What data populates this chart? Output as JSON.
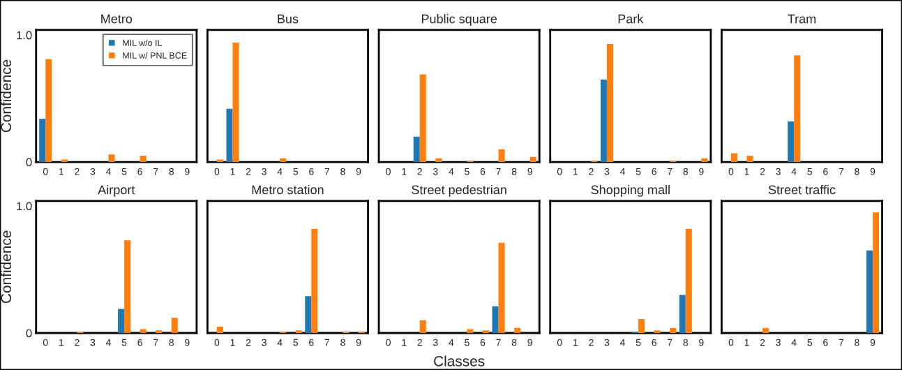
{
  "chart_data": [
    {
      "type": "bar",
      "title": "Metro",
      "ylabel": "Confidence",
      "categories": [
        "0",
        "1",
        "2",
        "3",
        "4",
        "5",
        "6",
        "7",
        "8",
        "9"
      ],
      "ylim": [
        0,
        1.04
      ],
      "yticks": [
        0,
        {
          "value": 1.0,
          "label": "1.0"
        }
      ],
      "grid": false,
      "legend": "top right",
      "series": [
        {
          "name": "MIL w/o IL",
          "color": "#1f77b4",
          "values": [
            0.34,
            0,
            0,
            0,
            0,
            0,
            0,
            0,
            0,
            0
          ]
        },
        {
          "name": "MIL w/ PNL BCE",
          "color": "#ff7f0e",
          "values": [
            0.81,
            0.02,
            0,
            0,
            0.06,
            0,
            0.05,
            0,
            0,
            0
          ]
        }
      ]
    },
    {
      "type": "bar",
      "title": "Bus",
      "categories": [
        "0",
        "1",
        "2",
        "3",
        "4",
        "5",
        "6",
        "7",
        "8",
        "9"
      ],
      "ylim": [
        0,
        1.04
      ],
      "grid": false,
      "tick_labels": "x",
      "series": [
        {
          "color": "#1f77b4",
          "values": [
            0,
            0.42,
            0,
            0,
            0,
            0,
            0,
            0,
            0,
            0
          ]
        },
        {
          "color": "#ff7f0e",
          "values": [
            0.02,
            0.94,
            0,
            0,
            0.03,
            0,
            0,
            0,
            0,
            0
          ]
        }
      ]
    },
    {
      "type": "bar",
      "title": "Public square",
      "categories": [
        "0",
        "1",
        "2",
        "3",
        "4",
        "5",
        "6",
        "7",
        "8",
        "9"
      ],
      "ylim": [
        0,
        1.04
      ],
      "grid": false,
      "tick_labels": "x",
      "series": [
        {
          "color": "#1f77b4",
          "values": [
            0,
            0,
            0.2,
            0,
            0,
            0,
            0,
            0,
            0,
            0
          ]
        },
        {
          "color": "#ff7f0e",
          "values": [
            0,
            0,
            0.69,
            0.03,
            0,
            0.01,
            0,
            0.1,
            0,
            0.04
          ]
        }
      ]
    },
    {
      "type": "bar",
      "title": "Park",
      "categories": [
        "0",
        "1",
        "2",
        "3",
        "4",
        "5",
        "6",
        "7",
        "8",
        "9"
      ],
      "ylim": [
        0,
        1.04
      ],
      "grid": false,
      "tick_labels": "x",
      "series": [
        {
          "color": "#1f77b4",
          "values": [
            0,
            0,
            0,
            0.65,
            0,
            0,
            0,
            0,
            0,
            0
          ]
        },
        {
          "color": "#ff7f0e",
          "values": [
            0,
            0,
            0.01,
            0.93,
            0,
            0,
            0,
            0.01,
            0,
            0.03
          ]
        }
      ]
    },
    {
      "type": "bar",
      "title": "Tram",
      "categories": [
        "0",
        "1",
        "2",
        "3",
        "4",
        "5",
        "6",
        "7",
        "8",
        "9"
      ],
      "ylim": [
        0,
        1.04
      ],
      "grid": false,
      "tick_labels": "x",
      "series": [
        {
          "color": "#1f77b4",
          "values": [
            0,
            0,
            0,
            0,
            0.32,
            0,
            0,
            0,
            0,
            0
          ]
        },
        {
          "color": "#ff7f0e",
          "values": [
            0.07,
            0.05,
            0,
            0,
            0.84,
            0,
            0,
            0,
            0,
            0
          ]
        }
      ]
    },
    {
      "type": "bar",
      "title": "Airport",
      "ylabel": "Confidence",
      "categories": [
        "0",
        "1",
        "2",
        "3",
        "4",
        "5",
        "6",
        "7",
        "8",
        "9"
      ],
      "ylim": [
        0,
        1.04
      ],
      "yticks": [
        0,
        {
          "value": 1.0,
          "label": "1.0"
        }
      ],
      "grid": false,
      "series": [
        {
          "color": "#1f77b4",
          "values": [
            0,
            0,
            0,
            0,
            0,
            0.19,
            0,
            0,
            0,
            0
          ]
        },
        {
          "color": "#ff7f0e",
          "values": [
            0,
            0,
            0.01,
            0,
            0,
            0.73,
            0.03,
            0.02,
            0.12,
            0
          ]
        }
      ]
    },
    {
      "type": "bar",
      "title": "Metro station",
      "categories": [
        "0",
        "1",
        "2",
        "3",
        "4",
        "5",
        "6",
        "7",
        "8",
        "9"
      ],
      "ylim": [
        0,
        1.04
      ],
      "grid": false,
      "tick_labels": "x",
      "series": [
        {
          "color": "#1f77b4",
          "values": [
            0,
            0,
            0,
            0,
            0,
            0,
            0.29,
            0,
            0,
            0
          ]
        },
        {
          "color": "#ff7f0e",
          "values": [
            0.05,
            0,
            0,
            0,
            0.01,
            0.02,
            0.82,
            0,
            0.01,
            0.01
          ]
        }
      ]
    },
    {
      "type": "bar",
      "title": "Street pedestrian",
      "xlabel": "Classes",
      "categories": [
        "0",
        "1",
        "2",
        "3",
        "4",
        "5",
        "6",
        "7",
        "8",
        "9"
      ],
      "ylim": [
        0,
        1.04
      ],
      "grid": false,
      "tick_labels": "x",
      "series": [
        {
          "color": "#1f77b4",
          "values": [
            0,
            0,
            0,
            0,
            0,
            0,
            0,
            0.21,
            0,
            0
          ]
        },
        {
          "color": "#ff7f0e",
          "values": [
            0,
            0,
            0.1,
            0,
            0,
            0.03,
            0.02,
            0.71,
            0.04,
            0
          ]
        }
      ]
    },
    {
      "type": "bar",
      "title": "Shopping mall",
      "categories": [
        "0",
        "1",
        "2",
        "3",
        "4",
        "5",
        "6",
        "7",
        "8",
        "9"
      ],
      "ylim": [
        0,
        1.04
      ],
      "grid": false,
      "tick_labels": "x",
      "series": [
        {
          "color": "#1f77b4",
          "values": [
            0,
            0,
            0,
            0,
            0,
            0.01,
            0,
            0,
            0.3,
            0
          ]
        },
        {
          "color": "#ff7f0e",
          "values": [
            0,
            0,
            0,
            0,
            0,
            0.11,
            0.02,
            0.04,
            0.82,
            0
          ]
        }
      ]
    },
    {
      "type": "bar",
      "title": "Street traffic",
      "categories": [
        "0",
        "1",
        "2",
        "3",
        "4",
        "5",
        "6",
        "7",
        "8",
        "9"
      ],
      "ylim": [
        0,
        1.04
      ],
      "grid": false,
      "tick_labels": "x",
      "series": [
        {
          "color": "#1f77b4",
          "values": [
            0,
            0,
            0,
            0,
            0,
            0,
            0,
            0,
            0,
            0.65
          ]
        },
        {
          "color": "#ff7f0e",
          "values": [
            0,
            0,
            0.04,
            0,
            0,
            0,
            0,
            0,
            0,
            0.95
          ]
        }
      ]
    }
  ]
}
